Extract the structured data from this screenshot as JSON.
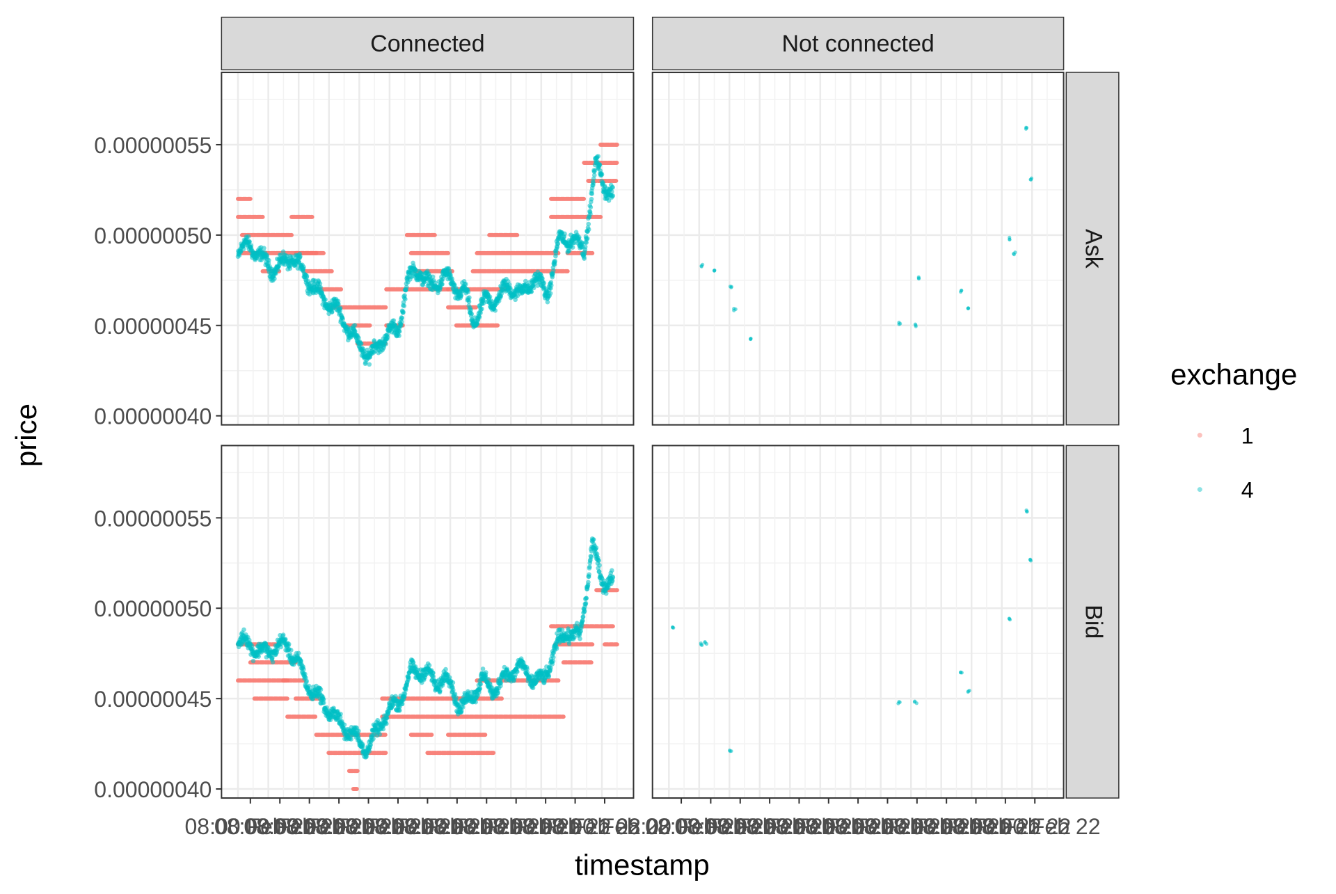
{
  "chart_data": {
    "type": "scatter",
    "title": "",
    "xlabel": "timestamp",
    "ylabel": "price",
    "ylim": [
      3.95e-07,
      5.9e-07
    ],
    "y_ticks": [
      "0.00000040",
      "0.00000045",
      "0.00000050",
      "0.00000055"
    ],
    "y_tick_values": [
      4e-07,
      4.5e-07,
      5e-07,
      5.5e-07
    ],
    "x_tick_labels_left": "08:00 Feb 22",
    "x_tick_labels_right": "08:00 Feb 22",
    "facet_columns": [
      "Connected",
      "Not connected"
    ],
    "facet_rows": [
      "Ask",
      "Bid"
    ],
    "grid": true,
    "legend": {
      "title": "exchange",
      "position": "right",
      "entries": [
        {
          "name": "1",
          "color": "#F8766D"
        },
        {
          "name": "4",
          "color": "#00BFC4"
        }
      ]
    },
    "series_colors": {
      "1": "#F8766D",
      "4": "#00BFC4"
    },
    "notconnected_points": {
      "Ask": [
        {
          "xf": 0.12,
          "y": 4.83e-07
        },
        {
          "xf": 0.15,
          "y": 4.81e-07
        },
        {
          "xf": 0.19,
          "y": 4.71e-07
        },
        {
          "xf": 0.2,
          "y": 4.59e-07
        },
        {
          "xf": 0.24,
          "y": 4.43e-07
        },
        {
          "xf": 0.6,
          "y": 4.51e-07
        },
        {
          "xf": 0.64,
          "y": 4.5e-07
        },
        {
          "xf": 0.65,
          "y": 4.76e-07
        },
        {
          "xf": 0.75,
          "y": 4.69e-07
        },
        {
          "xf": 0.77,
          "y": 4.59e-07
        },
        {
          "xf": 0.87,
          "y": 4.98e-07
        },
        {
          "xf": 0.88,
          "y": 4.9e-07
        },
        {
          "xf": 0.91,
          "y": 5.59e-07
        },
        {
          "xf": 0.92,
          "y": 5.31e-07
        }
      ],
      "Bid": [
        {
          "xf": 0.05,
          "y": 4.89e-07
        },
        {
          "xf": 0.12,
          "y": 4.8e-07
        },
        {
          "xf": 0.13,
          "y": 4.81e-07
        },
        {
          "xf": 0.19,
          "y": 4.21e-07
        },
        {
          "xf": 0.6,
          "y": 4.48e-07
        },
        {
          "xf": 0.64,
          "y": 4.48e-07
        },
        {
          "xf": 0.75,
          "y": 4.64e-07
        },
        {
          "xf": 0.77,
          "y": 4.54e-07
        },
        {
          "xf": 0.87,
          "y": 4.94e-07
        },
        {
          "xf": 0.91,
          "y": 5.54e-07
        },
        {
          "xf": 0.92,
          "y": 5.27e-07
        }
      ]
    },
    "connected_profile": {
      "Ask": [
        [
          0.04,
          4.9e-07
        ],
        [
          0.07,
          4.95e-07
        ],
        [
          0.1,
          4.86e-07
        ],
        [
          0.13,
          4.81e-07
        ],
        [
          0.17,
          4.88e-07
        ],
        [
          0.21,
          4.76e-07
        ],
        [
          0.24,
          4.66e-07
        ],
        [
          0.27,
          4.61e-07
        ],
        [
          0.3,
          4.52e-07
        ],
        [
          0.33,
          4.4e-07
        ],
        [
          0.36,
          4.33e-07
        ],
        [
          0.38,
          4.38e-07
        ],
        [
          0.4,
          4.46e-07
        ],
        [
          0.43,
          4.47e-07
        ],
        [
          0.45,
          4.75e-07
        ],
        [
          0.48,
          4.81e-07
        ],
        [
          0.51,
          4.7e-07
        ],
        [
          0.54,
          4.78e-07
        ],
        [
          0.57,
          4.7e-07
        ],
        [
          0.59,
          4.69e-07
        ],
        [
          0.61,
          4.52e-07
        ],
        [
          0.64,
          4.63e-07
        ],
        [
          0.67,
          4.65e-07
        ],
        [
          0.7,
          4.72e-07
        ],
        [
          0.73,
          4.67e-07
        ],
        [
          0.76,
          4.77e-07
        ],
        [
          0.79,
          4.67e-07
        ],
        [
          0.82,
          4.97e-07
        ],
        [
          0.85,
          4.98e-07
        ],
        [
          0.88,
          4.92e-07
        ],
        [
          0.91,
          5.4e-07
        ],
        [
          0.93,
          5.28e-07
        ],
        [
          0.95,
          5.2e-07
        ]
      ],
      "Bid": [
        [
          0.04,
          4.82e-07
        ],
        [
          0.07,
          4.8e-07
        ],
        [
          0.1,
          4.75e-07
        ],
        [
          0.13,
          4.78e-07
        ],
        [
          0.16,
          4.8e-07
        ],
        [
          0.19,
          4.67e-07
        ],
        [
          0.22,
          4.54e-07
        ],
        [
          0.25,
          4.47e-07
        ],
        [
          0.28,
          4.38e-07
        ],
        [
          0.31,
          4.32e-07
        ],
        [
          0.33,
          4.28e-07
        ],
        [
          0.35,
          4.22e-07
        ],
        [
          0.37,
          4.28e-07
        ],
        [
          0.39,
          4.38e-07
        ],
        [
          0.41,
          4.44e-07
        ],
        [
          0.43,
          4.48e-07
        ],
        [
          0.46,
          4.64e-07
        ],
        [
          0.49,
          4.66e-07
        ],
        [
          0.52,
          4.58e-07
        ],
        [
          0.54,
          4.62e-07
        ],
        [
          0.56,
          4.56e-07
        ],
        [
          0.58,
          4.45e-07
        ],
        [
          0.6,
          4.49e-07
        ],
        [
          0.63,
          4.6e-07
        ],
        [
          0.66,
          4.55e-07
        ],
        [
          0.69,
          4.62e-07
        ],
        [
          0.72,
          4.68e-07
        ],
        [
          0.75,
          4.62e-07
        ],
        [
          0.78,
          4.59e-07
        ],
        [
          0.81,
          4.78e-07
        ],
        [
          0.84,
          4.88e-07
        ],
        [
          0.87,
          4.83e-07
        ],
        [
          0.9,
          5.36e-07
        ],
        [
          0.92,
          5.16e-07
        ],
        [
          0.95,
          5.15e-07
        ]
      ]
    },
    "exchange1_levels": {
      "Ask": [
        [
          0.04,
          0.07,
          5.2e-07
        ],
        [
          0.04,
          0.1,
          5.1e-07
        ],
        [
          0.05,
          0.17,
          5e-07
        ],
        [
          0.05,
          0.23,
          4.9e-07
        ],
        [
          0.1,
          0.14,
          4.8e-07
        ],
        [
          0.17,
          0.22,
          5.1e-07
        ],
        [
          0.18,
          0.25,
          4.9e-07
        ],
        [
          0.2,
          0.27,
          4.8e-07
        ],
        [
          0.24,
          0.29,
          4.7e-07
        ],
        [
          0.26,
          0.4,
          4.6e-07
        ],
        [
          0.3,
          0.36,
          4.5e-07
        ],
        [
          0.33,
          0.4,
          4.4e-07
        ],
        [
          0.4,
          0.55,
          4.7e-07
        ],
        [
          0.4,
          0.44,
          4.5e-07
        ],
        [
          0.45,
          0.52,
          5e-07
        ],
        [
          0.46,
          0.55,
          4.9e-07
        ],
        [
          0.47,
          0.56,
          4.8e-07
        ],
        [
          0.55,
          0.69,
          4.7e-07
        ],
        [
          0.55,
          0.62,
          4.6e-07
        ],
        [
          0.57,
          0.67,
          4.5e-07
        ],
        [
          0.61,
          0.84,
          4.8e-07
        ],
        [
          0.62,
          0.82,
          4.9e-07
        ],
        [
          0.65,
          0.72,
          5e-07
        ],
        [
          0.8,
          0.88,
          5.2e-07
        ],
        [
          0.8,
          0.92,
          5.1e-07
        ],
        [
          0.84,
          0.9,
          4.9e-07
        ],
        [
          0.88,
          0.96,
          5.4e-07
        ],
        [
          0.89,
          0.96,
          5.3e-07
        ],
        [
          0.92,
          0.96,
          5.5e-07
        ]
      ],
      "Bid": [
        [
          0.04,
          0.14,
          4.8e-07
        ],
        [
          0.04,
          0.16,
          4.6e-07
        ],
        [
          0.07,
          0.18,
          4.7e-07
        ],
        [
          0.08,
          0.16,
          4.5e-07
        ],
        [
          0.15,
          0.2,
          4.6e-07
        ],
        [
          0.18,
          0.24,
          4.5e-07
        ],
        [
          0.16,
          0.23,
          4.4e-07
        ],
        [
          0.23,
          0.33,
          4.3e-07
        ],
        [
          0.26,
          0.4,
          4.2e-07
        ],
        [
          0.31,
          0.33,
          4.1e-07
        ],
        [
          0.32,
          0.33,
          4e-07
        ],
        [
          0.33,
          0.4,
          4.3e-07
        ],
        [
          0.39,
          0.83,
          4.4e-07
        ],
        [
          0.39,
          0.6,
          4.5e-07
        ],
        [
          0.46,
          0.51,
          4.3e-07
        ],
        [
          0.5,
          0.66,
          4.2e-07
        ],
        [
          0.55,
          0.64,
          4.3e-07
        ],
        [
          0.56,
          0.68,
          4.5e-07
        ],
        [
          0.62,
          0.82,
          4.6e-07
        ],
        [
          0.8,
          0.95,
          4.9e-07
        ],
        [
          0.81,
          0.9,
          4.8e-07
        ],
        [
          0.83,
          0.9,
          4.7e-07
        ],
        [
          0.91,
          0.96,
          5.1e-07
        ],
        [
          0.93,
          0.96,
          4.8e-07
        ]
      ]
    }
  }
}
